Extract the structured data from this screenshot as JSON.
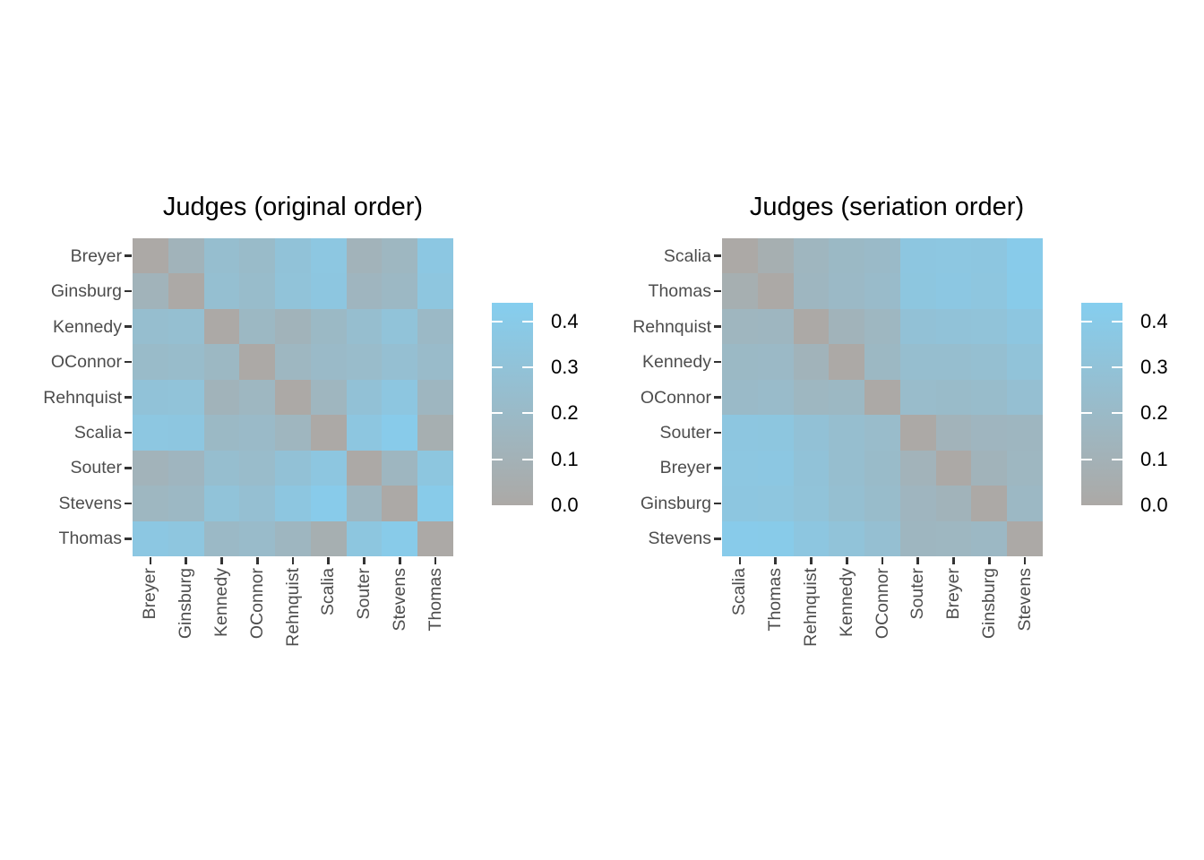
{
  "figure": {
    "background": "#ffffff",
    "title_color": "#000000",
    "axis_text_color": "#4d4d4d",
    "tick_color": "#333333"
  },
  "chart_data": {
    "type": "heatmap",
    "description": "Pairwise dissimilarity (proportion of disagreement) between US Supreme Court judges, shown as two heatmaps: original alphabetical order and seriation order.",
    "judges": [
      "Breyer",
      "Ginsburg",
      "Kennedy",
      "OConnor",
      "Rehnquist",
      "Scalia",
      "Souter",
      "Stevens",
      "Thomas"
    ],
    "dissimilarity_matrix": [
      [
        0.0,
        0.12,
        0.25,
        0.209,
        0.299,
        0.353,
        0.118,
        0.162,
        0.359
      ],
      [
        0.12,
        0.0,
        0.262,
        0.221,
        0.308,
        0.35,
        0.148,
        0.179,
        0.342
      ],
      [
        0.25,
        0.262,
        0.0,
        0.176,
        0.122,
        0.188,
        0.247,
        0.308,
        0.194
      ],
      [
        0.209,
        0.221,
        0.176,
        0.0,
        0.162,
        0.207,
        0.22,
        0.263,
        0.214
      ],
      [
        0.299,
        0.308,
        0.122,
        0.162,
        0.0,
        0.152,
        0.288,
        0.349,
        0.158
      ],
      [
        0.353,
        0.35,
        0.188,
        0.207,
        0.152,
        0.0,
        0.349,
        0.407,
        0.066
      ],
      [
        0.118,
        0.148,
        0.247,
        0.22,
        0.288,
        0.349,
        0.0,
        0.155,
        0.346
      ],
      [
        0.162,
        0.179,
        0.308,
        0.263,
        0.349,
        0.407,
        0.155,
        0.0,
        0.405
      ],
      [
        0.359,
        0.342,
        0.194,
        0.214,
        0.158,
        0.066,
        0.346,
        0.405,
        0.0
      ]
    ],
    "panels": [
      {
        "title": "Judges (original order)",
        "order": [
          "Breyer",
          "Ginsburg",
          "Kennedy",
          "OConnor",
          "Rehnquist",
          "Scalia",
          "Souter",
          "Stevens",
          "Thomas"
        ]
      },
      {
        "title": "Judges (seriation order)",
        "order": [
          "Scalia",
          "Thomas",
          "Rehnquist",
          "Kennedy",
          "OConnor",
          "Souter",
          "Breyer",
          "Ginsburg",
          "Stevens"
        ]
      }
    ],
    "legend": {
      "tick_labels": [
        "0.4",
        "0.3",
        "0.2",
        "0.1",
        "0.0"
      ],
      "tick_values": [
        0.4,
        0.3,
        0.2,
        0.1,
        0.0
      ],
      "scale_min": 0.0,
      "scale_max": 0.44,
      "low_color": "#aca9a6",
      "high_color": "#85ceef"
    }
  }
}
